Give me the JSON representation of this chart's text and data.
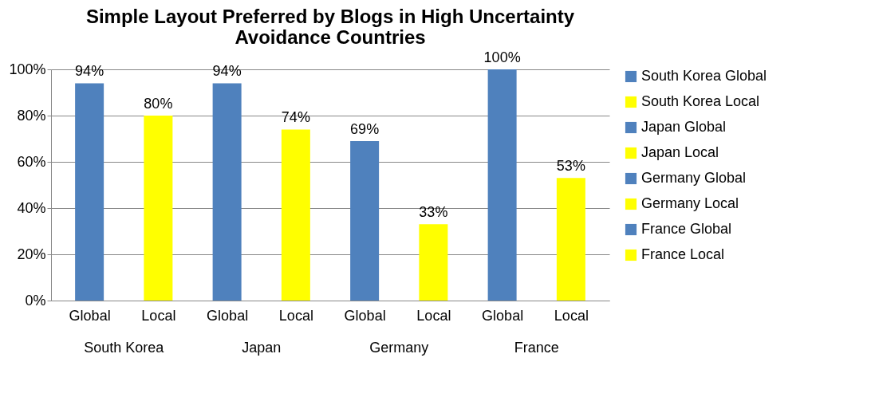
{
  "chart_data": {
    "type": "bar",
    "title": "Simple Layout Preferred by Blogs in High Uncertainty Avoidance Countries",
    "categories": [
      "Global",
      "Local",
      "Global",
      "Local",
      "Global",
      "Local",
      "Global",
      "Local"
    ],
    "series": [
      {
        "name": "South Korea Global",
        "color": "#4f81bd",
        "values": [
          94,
          null,
          null,
          null,
          null,
          null,
          null,
          null
        ],
        "value_labels": [
          "94%",
          null,
          null,
          null,
          null,
          null,
          null,
          null
        ]
      },
      {
        "name": "South Korea Local",
        "color": "#ffff00",
        "values": [
          null,
          80,
          null,
          null,
          null,
          null,
          null,
          null
        ],
        "value_labels": [
          null,
          "80%",
          null,
          null,
          null,
          null,
          null,
          null
        ]
      },
      {
        "name": "Japan Global",
        "color": "#4f81bd",
        "values": [
          null,
          null,
          94,
          null,
          null,
          null,
          null,
          null
        ],
        "value_labels": [
          null,
          null,
          "94%",
          null,
          null,
          null,
          null,
          null
        ]
      },
      {
        "name": "Japan Local",
        "color": "#ffff00",
        "values": [
          null,
          null,
          null,
          74,
          null,
          null,
          null,
          null
        ],
        "value_labels": [
          null,
          null,
          null,
          "74%",
          null,
          null,
          null,
          null
        ]
      },
      {
        "name": "Germany Global",
        "color": "#4f81bd",
        "values": [
          null,
          null,
          null,
          null,
          69,
          null,
          null,
          null
        ],
        "value_labels": [
          null,
          null,
          null,
          null,
          "69%",
          null,
          null,
          null
        ]
      },
      {
        "name": "Germany Local",
        "color": "#ffff00",
        "values": [
          null,
          null,
          null,
          null,
          null,
          33,
          null,
          null
        ],
        "value_labels": [
          null,
          null,
          null,
          null,
          null,
          "33%",
          null,
          null
        ]
      },
      {
        "name": "France Global",
        "color": "#4f81bd",
        "values": [
          null,
          null,
          null,
          null,
          null,
          null,
          100,
          null
        ],
        "value_labels": [
          null,
          null,
          null,
          null,
          null,
          null,
          "100%",
          null
        ]
      },
      {
        "name": "France Local",
        "color": "#ffff00",
        "values": [
          null,
          null,
          null,
          null,
          null,
          null,
          null,
          53
        ],
        "value_labels": [
          null,
          null,
          null,
          null,
          null,
          null,
          null,
          "53%"
        ]
      }
    ],
    "annotations": [
      "South Korea",
      "Japan",
      "Germany",
      "France"
    ],
    "ylim": [
      0,
      100
    ],
    "yticks": [
      {
        "value": 0,
        "label": "0%"
      },
      {
        "value": 20,
        "label": "20%"
      },
      {
        "value": 40,
        "label": "40%"
      },
      {
        "value": 60,
        "label": "60%"
      },
      {
        "value": 80,
        "label": "80%"
      },
      {
        "value": 100,
        "label": "100%"
      }
    ],
    "grid": "y",
    "legend": "right"
  }
}
